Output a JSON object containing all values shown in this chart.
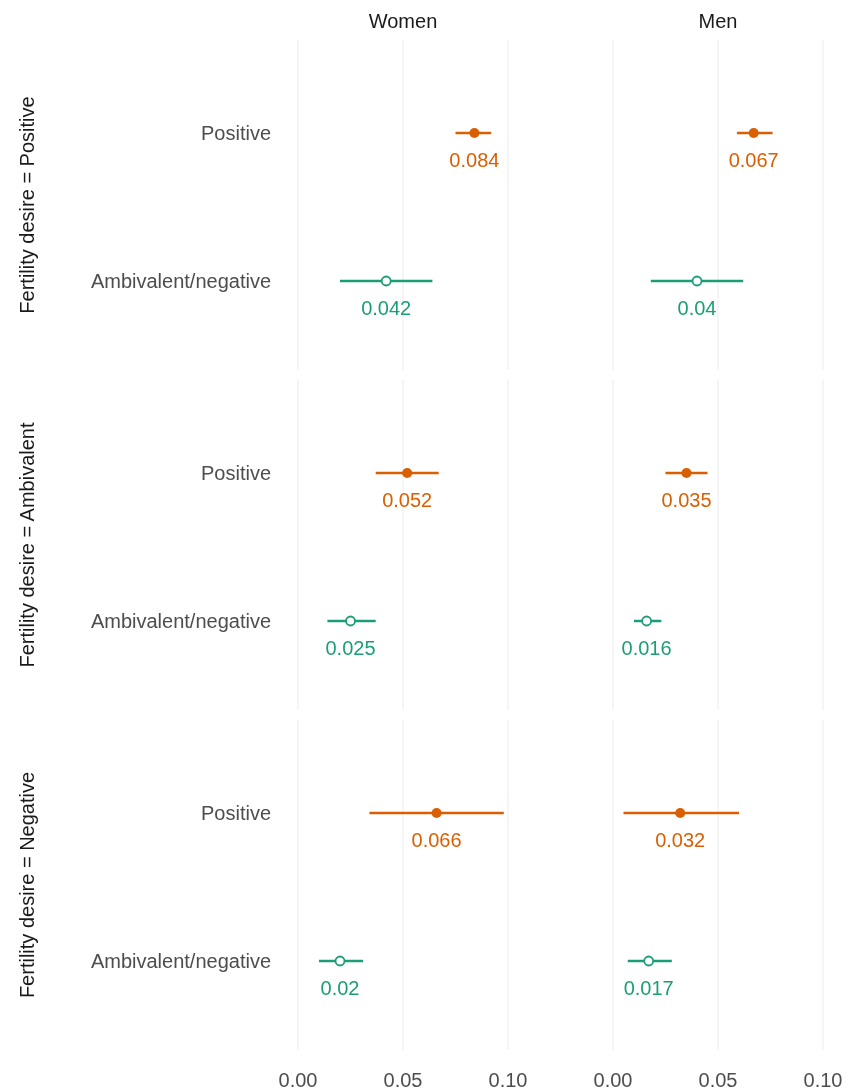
{
  "chart_data": [
    {
      "type": "scatter",
      "orientation": "horizontal",
      "title": "Women",
      "categories": [
        "Positive",
        "Ambivalent/negative",
        "Positive",
        "Ambivalent/negative",
        "Positive",
        "Ambivalent/negative"
      ],
      "annotations": [
        "Fertility desire = Positive",
        "Fertility desire = Ambivalent",
        "Fertility desire = Negative"
      ],
      "xlim": [
        0,
        0.1
      ],
      "xticks": [
        {
          "value": 0,
          "label": "0.00"
        },
        {
          "value": 0.05,
          "label": "0.05"
        },
        {
          "value": 0.1,
          "label": "0.10"
        }
      ],
      "grid": "x",
      "marker": "circle",
      "data_labels": true,
      "series": [
        {
          "color": "#d95f02",
          "values": [
            0.084,
            null,
            0.052,
            null,
            0.066,
            null
          ],
          "errors": [
            [
              0.075,
              0.092
            ],
            null,
            [
              0.037,
              0.067
            ],
            null,
            [
              0.034,
              0.098
            ],
            null
          ]
        },
        {
          "color": "#1b9e77",
          "values": [
            null,
            0.042,
            null,
            0.025,
            null,
            0.02
          ],
          "errors": [
            null,
            [
              0.02,
              0.064
            ],
            null,
            [
              0.014,
              0.037
            ],
            null,
            [
              0.01,
              0.031
            ]
          ]
        }
      ]
    },
    {
      "type": "scatter",
      "orientation": "horizontal",
      "title": "Men",
      "categories": [
        null,
        null,
        null,
        null,
        null,
        null
      ],
      "xlim": [
        0,
        0.1
      ],
      "xticks": [
        {
          "value": 0,
          "label": "0.00"
        },
        {
          "value": 0.05,
          "label": "0.05"
        },
        {
          "value": 0.1,
          "label": "0.10"
        }
      ],
      "grid": "x",
      "marker": "circle",
      "data_labels": true,
      "tick_labels": "x",
      "series": [
        {
          "color": "#d95f02",
          "values": [
            0.067,
            null,
            0.035,
            null,
            0.032,
            null
          ],
          "errors": [
            [
              0.059,
              0.076
            ],
            null,
            [
              0.025,
              0.045
            ],
            null,
            [
              0.005,
              0.06
            ],
            null
          ]
        },
        {
          "color": "#1b9e77",
          "values": [
            null,
            0.04,
            null,
            0.016,
            null,
            0.017
          ],
          "errors": [
            null,
            [
              0.018,
              0.062
            ],
            null,
            [
              0.01,
              0.023
            ],
            null,
            [
              0.007,
              0.028
            ]
          ]
        }
      ]
    }
  ]
}
